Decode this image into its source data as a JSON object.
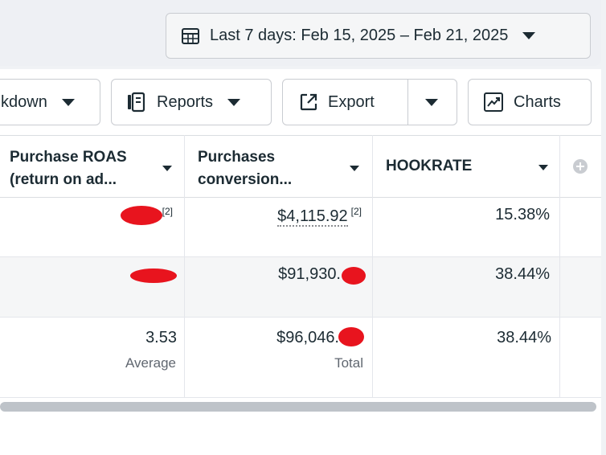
{
  "date_range": {
    "label": "Last 7 days: Feb 15, 2025 – Feb 21, 2025",
    "icon": "calendar-icon"
  },
  "toolbar": {
    "breakdown_label": "kdown",
    "reports_label": "Reports",
    "export_label": "Export",
    "charts_label": "Charts"
  },
  "columns": {
    "purchase_roas": {
      "line1": "Purchase ROAS",
      "line2": "(return on ad..."
    },
    "purchases_conversion": {
      "line1": "Purchases",
      "line2": "conversion..."
    },
    "hookrate": {
      "line1": "HOOKRATE"
    }
  },
  "rows": [
    {
      "roas": "",
      "roas_sup": "[2]",
      "purchases": "$4,115.92",
      "purchases_sup": "[2]",
      "hookrate": "15.38%"
    },
    {
      "roas": "",
      "purchases": "$91,930.",
      "hookrate": "38.44%"
    }
  ],
  "summary": {
    "roas": "3.53",
    "roas_sub": "Average",
    "purchases": "$96,046.",
    "purchases_sub": "Total",
    "hookrate": "38.44%"
  },
  "colors": {
    "redaction": "#e8141e",
    "border": "#c9ccd1"
  }
}
